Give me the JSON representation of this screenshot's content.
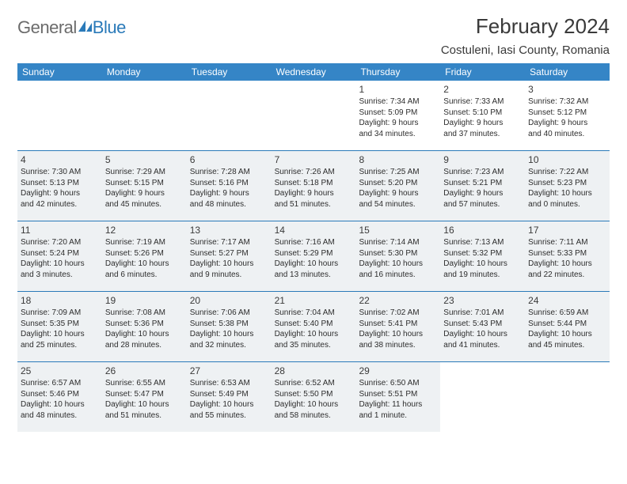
{
  "logo": {
    "text_a": "General",
    "text_b": "Blue"
  },
  "title": "February 2024",
  "location": "Costuleni, Iasi County, Romania",
  "colors": {
    "header_bg": "#3585c6",
    "header_text": "#ffffff",
    "row_border": "#2a7ab9",
    "shaded_bg": "#eef1f3",
    "body_text": "#2d2d2d",
    "title_text": "#3a3a3a",
    "logo_gray": "#6b6b6b",
    "logo_blue": "#2a7ab9",
    "page_bg": "#ffffff"
  },
  "typography": {
    "title_fontsize": 26,
    "location_fontsize": 15,
    "dayheader_fontsize": 12,
    "daynum_fontsize": 12,
    "body_fontsize": 10
  },
  "day_names": [
    "Sunday",
    "Monday",
    "Tuesday",
    "Wednesday",
    "Thursday",
    "Friday",
    "Saturday"
  ],
  "weeks": [
    [
      {
        "blank": true
      },
      {
        "blank": true
      },
      {
        "blank": true
      },
      {
        "blank": true
      },
      {
        "num": "1",
        "sunrise": "Sunrise: 7:34 AM",
        "sunset": "Sunset: 5:09 PM",
        "day1": "Daylight: 9 hours",
        "day2": "and 34 minutes.",
        "shaded": false
      },
      {
        "num": "2",
        "sunrise": "Sunrise: 7:33 AM",
        "sunset": "Sunset: 5:10 PM",
        "day1": "Daylight: 9 hours",
        "day2": "and 37 minutes.",
        "shaded": false
      },
      {
        "num": "3",
        "sunrise": "Sunrise: 7:32 AM",
        "sunset": "Sunset: 5:12 PM",
        "day1": "Daylight: 9 hours",
        "day2": "and 40 minutes.",
        "shaded": false
      }
    ],
    [
      {
        "num": "4",
        "sunrise": "Sunrise: 7:30 AM",
        "sunset": "Sunset: 5:13 PM",
        "day1": "Daylight: 9 hours",
        "day2": "and 42 minutes.",
        "shaded": true
      },
      {
        "num": "5",
        "sunrise": "Sunrise: 7:29 AM",
        "sunset": "Sunset: 5:15 PM",
        "day1": "Daylight: 9 hours",
        "day2": "and 45 minutes.",
        "shaded": true
      },
      {
        "num": "6",
        "sunrise": "Sunrise: 7:28 AM",
        "sunset": "Sunset: 5:16 PM",
        "day1": "Daylight: 9 hours",
        "day2": "and 48 minutes.",
        "shaded": true
      },
      {
        "num": "7",
        "sunrise": "Sunrise: 7:26 AM",
        "sunset": "Sunset: 5:18 PM",
        "day1": "Daylight: 9 hours",
        "day2": "and 51 minutes.",
        "shaded": true
      },
      {
        "num": "8",
        "sunrise": "Sunrise: 7:25 AM",
        "sunset": "Sunset: 5:20 PM",
        "day1": "Daylight: 9 hours",
        "day2": "and 54 minutes.",
        "shaded": true
      },
      {
        "num": "9",
        "sunrise": "Sunrise: 7:23 AM",
        "sunset": "Sunset: 5:21 PM",
        "day1": "Daylight: 9 hours",
        "day2": "and 57 minutes.",
        "shaded": true
      },
      {
        "num": "10",
        "sunrise": "Sunrise: 7:22 AM",
        "sunset": "Sunset: 5:23 PM",
        "day1": "Daylight: 10 hours",
        "day2": "and 0 minutes.",
        "shaded": true
      }
    ],
    [
      {
        "num": "11",
        "sunrise": "Sunrise: 7:20 AM",
        "sunset": "Sunset: 5:24 PM",
        "day1": "Daylight: 10 hours",
        "day2": "and 3 minutes.",
        "shaded": true
      },
      {
        "num": "12",
        "sunrise": "Sunrise: 7:19 AM",
        "sunset": "Sunset: 5:26 PM",
        "day1": "Daylight: 10 hours",
        "day2": "and 6 minutes.",
        "shaded": true
      },
      {
        "num": "13",
        "sunrise": "Sunrise: 7:17 AM",
        "sunset": "Sunset: 5:27 PM",
        "day1": "Daylight: 10 hours",
        "day2": "and 9 minutes.",
        "shaded": true
      },
      {
        "num": "14",
        "sunrise": "Sunrise: 7:16 AM",
        "sunset": "Sunset: 5:29 PM",
        "day1": "Daylight: 10 hours",
        "day2": "and 13 minutes.",
        "shaded": true
      },
      {
        "num": "15",
        "sunrise": "Sunrise: 7:14 AM",
        "sunset": "Sunset: 5:30 PM",
        "day1": "Daylight: 10 hours",
        "day2": "and 16 minutes.",
        "shaded": true
      },
      {
        "num": "16",
        "sunrise": "Sunrise: 7:13 AM",
        "sunset": "Sunset: 5:32 PM",
        "day1": "Daylight: 10 hours",
        "day2": "and 19 minutes.",
        "shaded": true
      },
      {
        "num": "17",
        "sunrise": "Sunrise: 7:11 AM",
        "sunset": "Sunset: 5:33 PM",
        "day1": "Daylight: 10 hours",
        "day2": "and 22 minutes.",
        "shaded": true
      }
    ],
    [
      {
        "num": "18",
        "sunrise": "Sunrise: 7:09 AM",
        "sunset": "Sunset: 5:35 PM",
        "day1": "Daylight: 10 hours",
        "day2": "and 25 minutes.",
        "shaded": true
      },
      {
        "num": "19",
        "sunrise": "Sunrise: 7:08 AM",
        "sunset": "Sunset: 5:36 PM",
        "day1": "Daylight: 10 hours",
        "day2": "and 28 minutes.",
        "shaded": true
      },
      {
        "num": "20",
        "sunrise": "Sunrise: 7:06 AM",
        "sunset": "Sunset: 5:38 PM",
        "day1": "Daylight: 10 hours",
        "day2": "and 32 minutes.",
        "shaded": true
      },
      {
        "num": "21",
        "sunrise": "Sunrise: 7:04 AM",
        "sunset": "Sunset: 5:40 PM",
        "day1": "Daylight: 10 hours",
        "day2": "and 35 minutes.",
        "shaded": true
      },
      {
        "num": "22",
        "sunrise": "Sunrise: 7:02 AM",
        "sunset": "Sunset: 5:41 PM",
        "day1": "Daylight: 10 hours",
        "day2": "and 38 minutes.",
        "shaded": true
      },
      {
        "num": "23",
        "sunrise": "Sunrise: 7:01 AM",
        "sunset": "Sunset: 5:43 PM",
        "day1": "Daylight: 10 hours",
        "day2": "and 41 minutes.",
        "shaded": true
      },
      {
        "num": "24",
        "sunrise": "Sunrise: 6:59 AM",
        "sunset": "Sunset: 5:44 PM",
        "day1": "Daylight: 10 hours",
        "day2": "and 45 minutes.",
        "shaded": true
      }
    ],
    [
      {
        "num": "25",
        "sunrise": "Sunrise: 6:57 AM",
        "sunset": "Sunset: 5:46 PM",
        "day1": "Daylight: 10 hours",
        "day2": "and 48 minutes.",
        "shaded": true
      },
      {
        "num": "26",
        "sunrise": "Sunrise: 6:55 AM",
        "sunset": "Sunset: 5:47 PM",
        "day1": "Daylight: 10 hours",
        "day2": "and 51 minutes.",
        "shaded": true
      },
      {
        "num": "27",
        "sunrise": "Sunrise: 6:53 AM",
        "sunset": "Sunset: 5:49 PM",
        "day1": "Daylight: 10 hours",
        "day2": "and 55 minutes.",
        "shaded": true
      },
      {
        "num": "28",
        "sunrise": "Sunrise: 6:52 AM",
        "sunset": "Sunset: 5:50 PM",
        "day1": "Daylight: 10 hours",
        "day2": "and 58 minutes.",
        "shaded": true
      },
      {
        "num": "29",
        "sunrise": "Sunrise: 6:50 AM",
        "sunset": "Sunset: 5:51 PM",
        "day1": "Daylight: 11 hours",
        "day2": "and 1 minute.",
        "shaded": true
      },
      {
        "blank": true
      },
      {
        "blank": true
      }
    ]
  ]
}
